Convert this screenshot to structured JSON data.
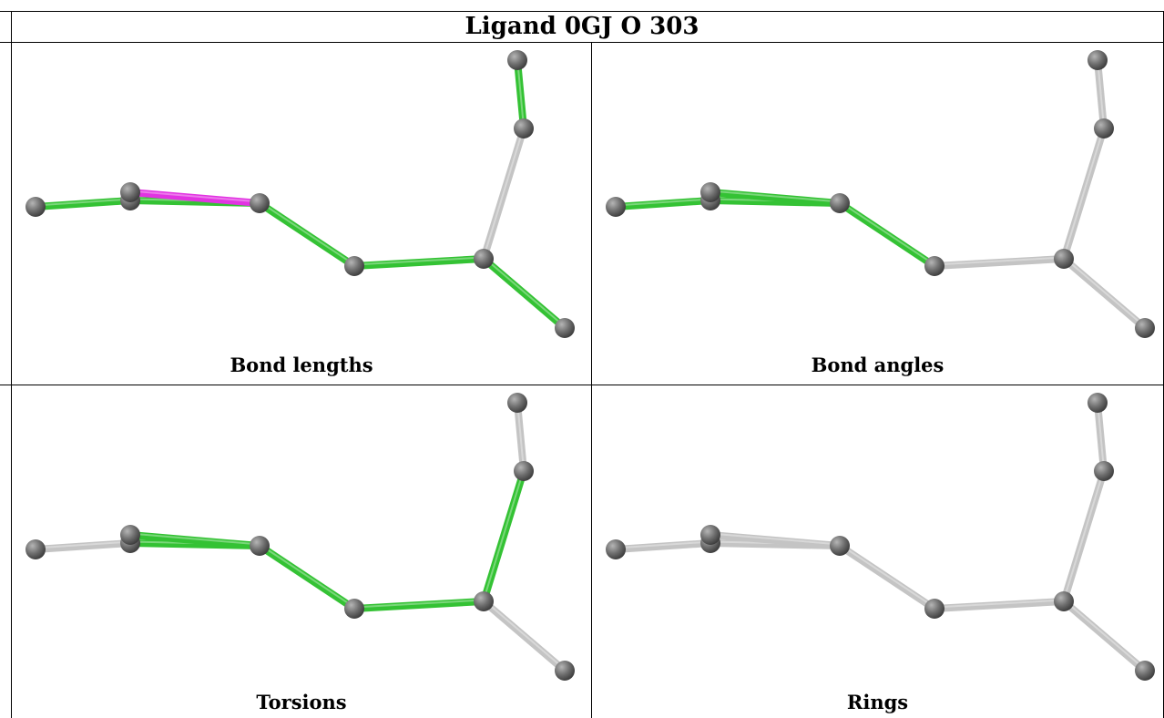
{
  "title": "Ligand 0GJ O 303",
  "colors": {
    "ok_bond": "#34c234",
    "outlier_bond": "#e233e2",
    "neutral_bond": "#c4c4c4",
    "atom": "#6f6f6f"
  },
  "panels": [
    {
      "caption": "Bond lengths",
      "bond_status": [
        "ok",
        "ok",
        "outlier",
        "ok",
        "ok",
        "neutral",
        "ok",
        "ok"
      ]
    },
    {
      "caption": "Bond angles",
      "bond_status": [
        "ok",
        "ok",
        "ok",
        "ok",
        "neutral",
        "neutral",
        "neutral",
        "neutral"
      ]
    },
    {
      "caption": "Torsions",
      "bond_status": [
        "neutral",
        "ok",
        "ok",
        "ok",
        "ok",
        "ok",
        "neutral",
        "neutral"
      ]
    },
    {
      "caption": "Rings",
      "bond_status": [
        "neutral",
        "neutral",
        "neutral",
        "neutral",
        "neutral",
        "neutral",
        "neutral",
        "neutral"
      ]
    }
  ]
}
